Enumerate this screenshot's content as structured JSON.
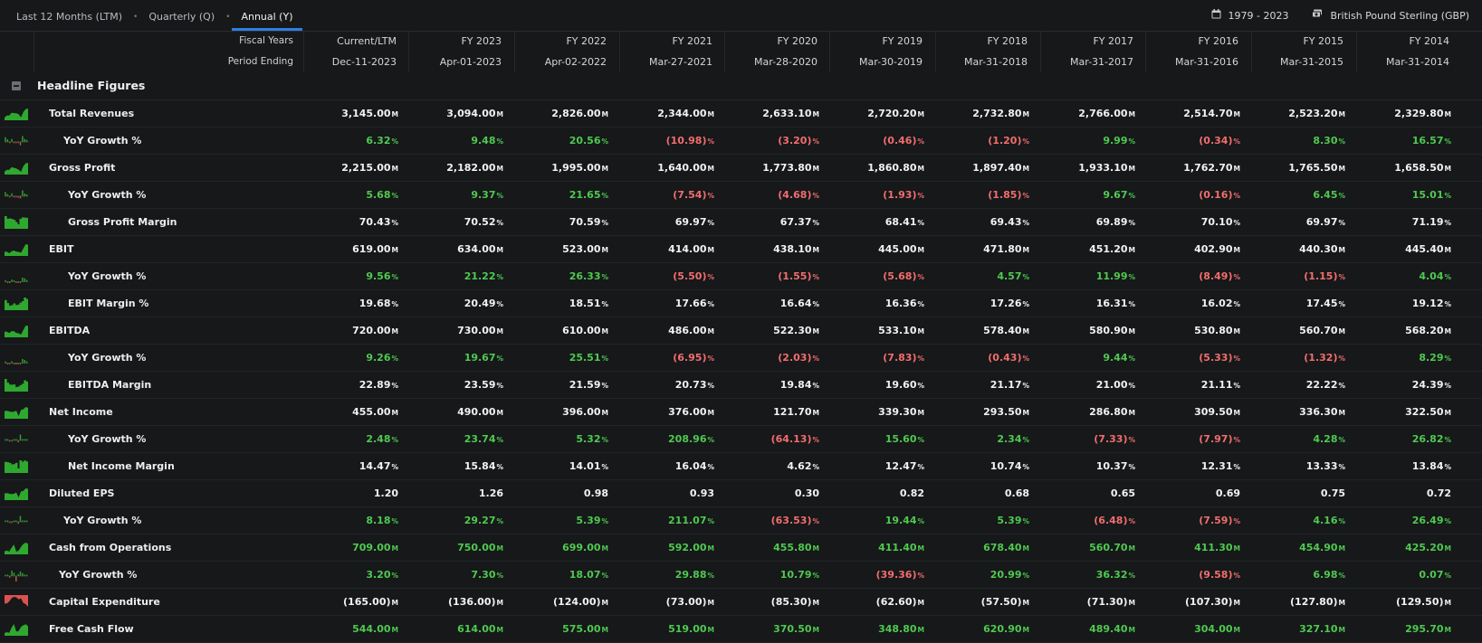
{
  "tabs": [
    {
      "label": "Last 12 Months (LTM)"
    },
    {
      "label": "Quarterly (Q)"
    },
    {
      "label": "Annual (Y)"
    }
  ],
  "date_range": "1979 - 2023",
  "currency": "British Pound Sterling (GBP)",
  "header": {
    "fiscal_years_label": "Fiscal Years",
    "period_ending_label": "Period Ending",
    "columns": [
      {
        "fy": "Current/LTM",
        "date": "Dec-11-2023"
      },
      {
        "fy": "FY 2023",
        "date": "Apr-01-2023"
      },
      {
        "fy": "FY 2022",
        "date": "Apr-02-2022"
      },
      {
        "fy": "FY 2021",
        "date": "Mar-27-2021"
      },
      {
        "fy": "FY 2020",
        "date": "Mar-28-2020"
      },
      {
        "fy": "FY 2019",
        "date": "Mar-30-2019"
      },
      {
        "fy": "FY 2018",
        "date": "Mar-31-2018"
      },
      {
        "fy": "FY 2017",
        "date": "Mar-31-2017"
      },
      {
        "fy": "FY 2016",
        "date": "Mar-31-2016"
      },
      {
        "fy": "FY 2015",
        "date": "Mar-31-2015"
      },
      {
        "fy": "FY 2014",
        "date": "Mar-31-2014"
      }
    ]
  },
  "section_title": "Headline Figures",
  "colors": {
    "positive": "#4fc94f",
    "negative": "#f26d6d",
    "neutral": "#f2f2f2",
    "spark_green": "#2fa82f",
    "spark_red": "#d9534f"
  },
  "rows": [
    {
      "label": "Total Revenues",
      "indent": 0,
      "spark": "area-green",
      "values": [
        "3,145.00",
        "3,094.00",
        "2,826.00",
        "2,344.00",
        "2,633.10",
        "2,720.20",
        "2,732.80",
        "2,766.00",
        "2,514.70",
        "2,523.20",
        "2,329.80"
      ],
      "unit": "M",
      "tone": "neutral"
    },
    {
      "label": "YoY Growth %",
      "indent": 2,
      "spark": "mixed",
      "values": [
        "6.32",
        "9.48",
        "20.56",
        "(10.98)",
        "(3.20)",
        "(0.46)",
        "(1.20)",
        "9.99",
        "(0.34)",
        "8.30",
        "16.57"
      ],
      "unit": "%",
      "tone": "signed"
    },
    {
      "label": "Gross Profit",
      "indent": 0,
      "spark": "area-green",
      "values": [
        "2,215.00",
        "2,182.00",
        "1,995.00",
        "1,640.00",
        "1,773.80",
        "1,860.80",
        "1,897.40",
        "1,933.10",
        "1,762.70",
        "1,765.50",
        "1,658.50"
      ],
      "unit": "M",
      "tone": "neutral"
    },
    {
      "label": "YoY Growth %",
      "indent": 1,
      "spark": "mixed",
      "values": [
        "5.68",
        "9.37",
        "21.65",
        "(7.54)",
        "(4.68)",
        "(1.93)",
        "(1.85)",
        "9.67",
        "(0.16)",
        "6.45",
        "15.01"
      ],
      "unit": "%",
      "tone": "signed"
    },
    {
      "label": "Gross Profit Margin",
      "indent": 1,
      "spark": "bars-green",
      "values": [
        "70.43",
        "70.52",
        "70.59",
        "69.97",
        "67.37",
        "68.41",
        "69.43",
        "69.89",
        "70.10",
        "69.97",
        "71.19"
      ],
      "unit": "%",
      "tone": "neutral"
    },
    {
      "label": "EBIT",
      "indent": 0,
      "spark": "area-green",
      "values": [
        "619.00",
        "634.00",
        "523.00",
        "414.00",
        "438.10",
        "445.00",
        "471.80",
        "451.20",
        "402.90",
        "440.30",
        "445.40"
      ],
      "unit": "M",
      "tone": "neutral"
    },
    {
      "label": "YoY Growth %",
      "indent": 1,
      "spark": "flat",
      "values": [
        "9.56",
        "21.22",
        "26.33",
        "(5.50)",
        "(1.55)",
        "(5.68)",
        "4.57",
        "11.99",
        "(8.49)",
        "(1.15)",
        "4.04"
      ],
      "unit": "%",
      "tone": "signed"
    },
    {
      "label": "EBIT Margin %",
      "indent": 1,
      "spark": "bars-green",
      "values": [
        "19.68",
        "20.49",
        "18.51",
        "17.66",
        "16.64",
        "16.36",
        "17.26",
        "16.31",
        "16.02",
        "17.45",
        "19.12"
      ],
      "unit": "%",
      "tone": "neutral"
    },
    {
      "label": "EBITDA",
      "indent": 0,
      "spark": "area-green",
      "values": [
        "720.00",
        "730.00",
        "610.00",
        "486.00",
        "522.30",
        "533.10",
        "578.40",
        "580.90",
        "530.80",
        "560.70",
        "568.20"
      ],
      "unit": "M",
      "tone": "neutral"
    },
    {
      "label": "YoY Growth %",
      "indent": 1,
      "spark": "flat",
      "values": [
        "9.26",
        "19.67",
        "25.51",
        "(6.95)",
        "(2.03)",
        "(7.83)",
        "(0.43)",
        "9.44",
        "(5.33)",
        "(1.32)",
        "8.29"
      ],
      "unit": "%",
      "tone": "signed"
    },
    {
      "label": "EBITDA Margin",
      "indent": 1,
      "spark": "bars-green",
      "values": [
        "22.89",
        "23.59",
        "21.59",
        "20.73",
        "19.84",
        "19.60",
        "21.17",
        "21.00",
        "21.11",
        "22.22",
        "24.39"
      ],
      "unit": "%",
      "tone": "neutral"
    },
    {
      "label": "Net Income",
      "indent": 0,
      "spark": "area-green",
      "values": [
        "455.00",
        "490.00",
        "396.00",
        "376.00",
        "121.70",
        "339.30",
        "293.50",
        "286.80",
        "309.50",
        "336.30",
        "322.50"
      ],
      "unit": "M",
      "tone": "neutral"
    },
    {
      "label": "YoY Growth %",
      "indent": 1,
      "spark": "mixed",
      "values": [
        "2.48",
        "23.74",
        "5.32",
        "208.96",
        "(64.13)",
        "15.60",
        "2.34",
        "(7.33)",
        "(7.97)",
        "4.28",
        "26.82"
      ],
      "unit": "%",
      "tone": "signed"
    },
    {
      "label": "Net Income Margin",
      "indent": 1,
      "spark": "bars-green",
      "values": [
        "14.47",
        "15.84",
        "14.01",
        "16.04",
        "4.62",
        "12.47",
        "10.74",
        "10.37",
        "12.31",
        "13.33",
        "13.84"
      ],
      "unit": "%",
      "tone": "neutral"
    },
    {
      "label": "Diluted EPS",
      "indent": 0,
      "spark": "area-green",
      "values": [
        "1.20",
        "1.26",
        "0.98",
        "0.93",
        "0.30",
        "0.82",
        "0.68",
        "0.65",
        "0.69",
        "0.75",
        "0.72"
      ],
      "unit": "",
      "tone": "neutral"
    },
    {
      "label": "YoY Growth %",
      "indent": 2,
      "spark": "mixed",
      "values": [
        "8.18",
        "29.27",
        "5.39",
        "211.07",
        "(63.53)",
        "19.44",
        "5.39",
        "(6.48)",
        "(7.59)",
        "4.16",
        "26.49"
      ],
      "unit": "%",
      "tone": "signed"
    },
    {
      "label": "Cash from Operations",
      "indent": 0,
      "spark": "area-green",
      "values": [
        "709.00",
        "750.00",
        "699.00",
        "592.00",
        "455.80",
        "411.40",
        "678.40",
        "560.70",
        "411.30",
        "454.90",
        "425.20"
      ],
      "unit": "M",
      "tone": "signed"
    },
    {
      "label": "YoY Growth %",
      "indent": 3,
      "spark": "mixed",
      "values": [
        "3.20",
        "7.30",
        "18.07",
        "29.88",
        "10.79",
        "(39.36)",
        "20.99",
        "36.32",
        "(9.58)",
        "6.98",
        "0.07"
      ],
      "unit": "%",
      "tone": "signed"
    },
    {
      "label": "Capital Expenditure",
      "indent": 0,
      "spark": "area-red",
      "values": [
        "(165.00)",
        "(136.00)",
        "(124.00)",
        "(73.00)",
        "(85.30)",
        "(62.60)",
        "(57.50)",
        "(71.30)",
        "(107.30)",
        "(127.80)",
        "(129.50)"
      ],
      "unit": "M",
      "tone": "neutral"
    },
    {
      "label": "Free Cash Flow",
      "indent": 0,
      "spark": "area-green",
      "values": [
        "544.00",
        "614.00",
        "575.00",
        "519.00",
        "370.50",
        "348.80",
        "620.90",
        "489.40",
        "304.00",
        "327.10",
        "295.70"
      ],
      "unit": "M",
      "tone": "signed"
    }
  ]
}
